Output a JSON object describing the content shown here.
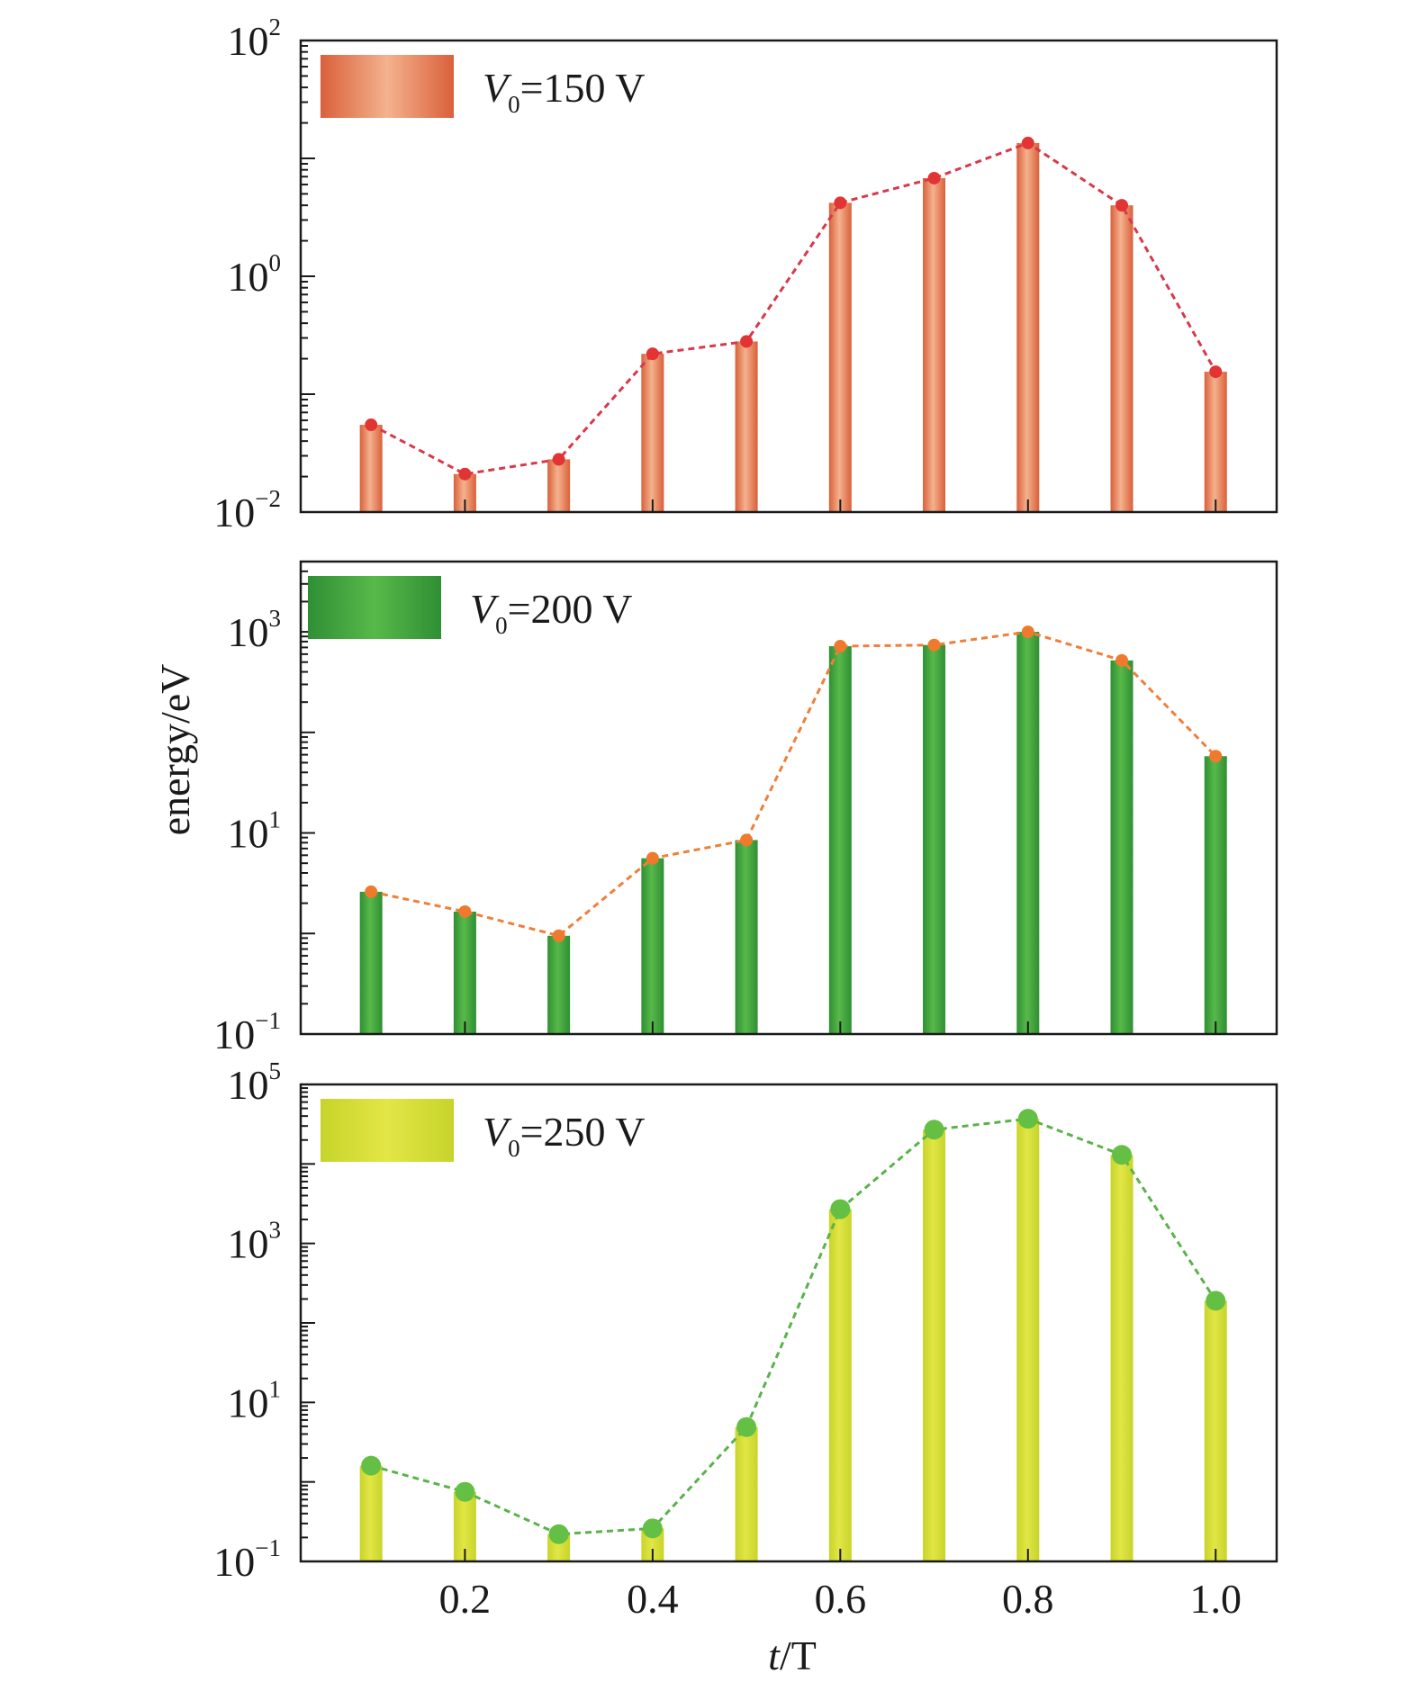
{
  "figure": {
    "ylabel": "energy/eV",
    "xlabel_italic": "t",
    "xlabel_rest": "/T",
    "x_ticks": [
      "0.2",
      "0.4",
      "0.6",
      "0.8",
      "1.0"
    ]
  },
  "chart_data": [
    {
      "type": "bar",
      "scale": "log",
      "legend": {
        "symbol": "V",
        "subscript": "0",
        "text": "=150 V",
        "placement": "top-left"
      },
      "x": [
        0.1,
        0.2,
        0.3,
        0.4,
        0.5,
        0.6,
        0.7,
        0.8,
        0.9,
        1.0
      ],
      "values": [
        0.055,
        0.021,
        0.028,
        0.22,
        0.28,
        4.2,
        6.8,
        13.5,
        4.0,
        0.155
      ],
      "ylim": [
        0.01,
        100
      ],
      "y_ticks": [
        {
          "base": "10",
          "exp": "2"
        },
        {
          "base": "10",
          "exp": "0"
        },
        {
          "base": "10",
          "exp": "−2"
        }
      ],
      "colors": {
        "bar_edge": "#d9603a",
        "bar_center": "#f4b28e",
        "line": "#d9384a",
        "marker": "#e23434"
      }
    },
    {
      "type": "bar",
      "scale": "log",
      "legend": {
        "symbol": "V",
        "subscript": "0",
        "text": "=200 V",
        "placement": "top-left"
      },
      "x": [
        0.1,
        0.2,
        0.3,
        0.4,
        0.5,
        0.6,
        0.7,
        0.8,
        0.9,
        1.0
      ],
      "values": [
        2.6,
        1.65,
        0.95,
        5.6,
        8.5,
        720,
        740,
        1000,
        520,
        58
      ],
      "ylim": [
        0.1,
        5000
      ],
      "y_ticks": [
        {
          "base": "10",
          "exp": "3"
        },
        {
          "base": "10",
          "exp": "1"
        },
        {
          "base": "10",
          "exp": "−1"
        }
      ],
      "colors": {
        "bar_edge": "#2f8f34",
        "bar_center": "#58b94a",
        "line": "#ef7f3a",
        "marker": "#ef7a2e"
      }
    },
    {
      "type": "bar",
      "scale": "log",
      "legend": {
        "symbol": "V",
        "subscript": "0",
        "text": "=250 V",
        "placement": "top-left"
      },
      "x": [
        0.1,
        0.2,
        0.3,
        0.4,
        0.5,
        0.6,
        0.7,
        0.8,
        0.9,
        1.0
      ],
      "values": [
        1.6,
        0.75,
        0.22,
        0.26,
        4.9,
        2700,
        27000,
        37000,
        13000,
        190
      ],
      "ylim": [
        0.1,
        100000
      ],
      "y_ticks": [
        {
          "base": "10",
          "exp": "5"
        },
        {
          "base": "10",
          "exp": "3"
        },
        {
          "base": "10",
          "exp": "1"
        },
        {
          "base": "10",
          "exp": "−1"
        }
      ],
      "colors": {
        "bar_edge": "#c7d42a",
        "bar_center": "#e2e646",
        "line": "#5ab24a",
        "marker": "#64bf45"
      }
    }
  ]
}
